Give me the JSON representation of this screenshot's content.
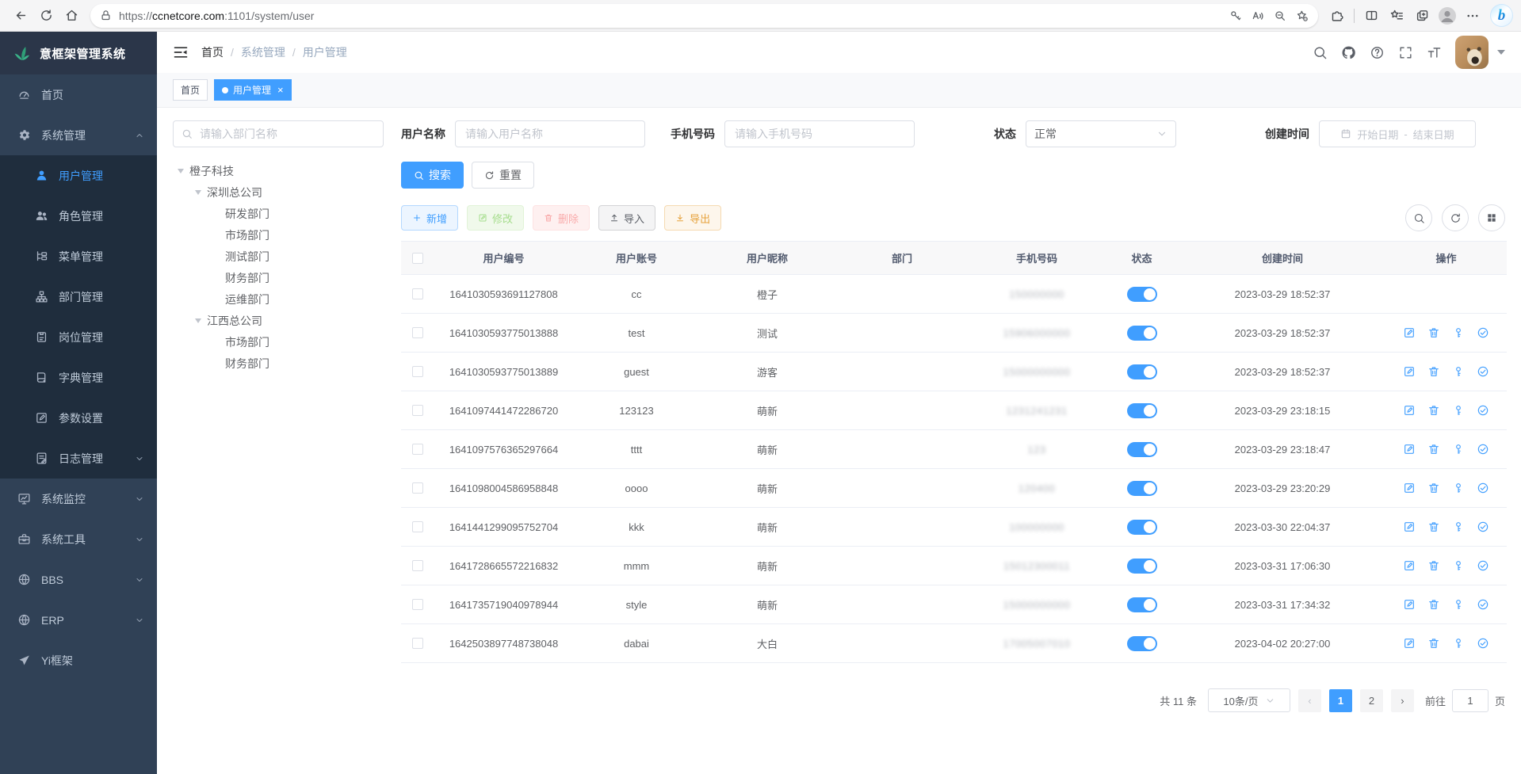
{
  "browser": {
    "url_scheme": "https://",
    "url_host": "ccnetcore.com",
    "url_path": ":1101/system/user"
  },
  "app_title": "意框架管理系统",
  "sidebar": {
    "items": [
      {
        "key": "home",
        "label": "首页",
        "icon": "dashboard-icon",
        "level": "top"
      },
      {
        "key": "system",
        "label": "系统管理",
        "icon": "gear-icon",
        "level": "top",
        "arrow": "up"
      },
      {
        "key": "user",
        "label": "用户管理",
        "icon": "user-icon",
        "level": "sub",
        "active": true
      },
      {
        "key": "role",
        "label": "角色管理",
        "icon": "users-icon",
        "level": "sub"
      },
      {
        "key": "menu",
        "label": "菜单管理",
        "icon": "menu-tree-icon",
        "level": "sub"
      },
      {
        "key": "dept",
        "label": "部门管理",
        "icon": "org-tree-icon",
        "level": "sub"
      },
      {
        "key": "post",
        "label": "岗位管理",
        "icon": "post-icon",
        "level": "sub"
      },
      {
        "key": "dict",
        "label": "字典管理",
        "icon": "dict-icon",
        "level": "sub"
      },
      {
        "key": "param",
        "label": "参数设置",
        "icon": "edit-square-icon",
        "level": "sub"
      },
      {
        "key": "log",
        "label": "日志管理",
        "icon": "log-icon",
        "level": "sub",
        "arrow": "down"
      },
      {
        "key": "monitor",
        "label": "系统监控",
        "icon": "monitor-icon",
        "level": "top",
        "arrow": "down"
      },
      {
        "key": "tool",
        "label": "系统工具",
        "icon": "toolbox-icon",
        "level": "top",
        "arrow": "down"
      },
      {
        "key": "bbs",
        "label": "BBS",
        "icon": "globe-icon",
        "level": "top",
        "arrow": "down"
      },
      {
        "key": "erp",
        "label": "ERP",
        "icon": "globe-icon",
        "level": "top",
        "arrow": "down"
      },
      {
        "key": "yi",
        "label": "Yi框架",
        "icon": "guide-icon",
        "level": "top"
      }
    ]
  },
  "breadcrumb": {
    "items": [
      "首页",
      "系统管理",
      "用户管理"
    ],
    "separator": "/"
  },
  "tags": [
    {
      "label": "首页",
      "active": false
    },
    {
      "label": "用户管理",
      "active": true,
      "closable": true
    }
  ],
  "tree": {
    "search_placeholder": "请输入部门名称",
    "nodes": [
      {
        "label": "橙子科技",
        "level": 0,
        "expanded": true
      },
      {
        "label": "深圳总公司",
        "level": 1,
        "expanded": true
      },
      {
        "label": "研发部门",
        "level": 2
      },
      {
        "label": "市场部门",
        "level": 2
      },
      {
        "label": "测试部门",
        "level": 2
      },
      {
        "label": "财务部门",
        "level": 2
      },
      {
        "label": "运维部门",
        "level": 2
      },
      {
        "label": "江西总公司",
        "level": 1,
        "expanded": true
      },
      {
        "label": "市场部门",
        "level": 2
      },
      {
        "label": "财务部门",
        "level": 2
      }
    ]
  },
  "filters": {
    "username_label": "用户名称",
    "username_placeholder": "请输入用户名称",
    "phone_label": "手机号码",
    "phone_placeholder": "请输入手机号码",
    "status_label": "状态",
    "status_value": "正常",
    "created_label": "创建时间",
    "date_start": "开始日期",
    "date_sep": "-",
    "date_end": "结束日期",
    "search_label": "搜索",
    "reset_label": "重置"
  },
  "toolbar": {
    "add": "新增",
    "edit": "修改",
    "delete": "删除",
    "import": "导入",
    "export": "导出"
  },
  "table": {
    "columns": [
      "用户编号",
      "用户账号",
      "用户昵称",
      "部门",
      "手机号码",
      "状态",
      "创建时间",
      "操作"
    ],
    "rows": [
      {
        "id": "1641030593691127808",
        "account": "cc",
        "nickname": "橙子",
        "dept": "",
        "phone": "150000000",
        "status": true,
        "created": "2023-03-29 18:52:37",
        "ops": false
      },
      {
        "id": "1641030593775013888",
        "account": "test",
        "nickname": "测试",
        "dept": "",
        "phone": "15906000000",
        "status": true,
        "created": "2023-03-29 18:52:37",
        "ops": true
      },
      {
        "id": "1641030593775013889",
        "account": "guest",
        "nickname": "游客",
        "dept": "",
        "phone": "15000000000",
        "status": true,
        "created": "2023-03-29 18:52:37",
        "ops": true
      },
      {
        "id": "1641097441472286720",
        "account": "123123",
        "nickname": "萌新",
        "dept": "",
        "phone": "1231241231",
        "status": true,
        "created": "2023-03-29 23:18:15",
        "ops": true
      },
      {
        "id": "1641097576365297664",
        "account": "tttt",
        "nickname": "萌新",
        "dept": "",
        "phone": "123",
        "status": true,
        "created": "2023-03-29 23:18:47",
        "ops": true
      },
      {
        "id": "1641098004586958848",
        "account": "oooo",
        "nickname": "萌新",
        "dept": "",
        "phone": "120400",
        "status": true,
        "created": "2023-03-29 23:20:29",
        "ops": true
      },
      {
        "id": "1641441299095752704",
        "account": "kkk",
        "nickname": "萌新",
        "dept": "",
        "phone": "100000000",
        "status": true,
        "created": "2023-03-30 22:04:37",
        "ops": true
      },
      {
        "id": "1641728665572216832",
        "account": "mmm",
        "nickname": "萌新",
        "dept": "",
        "phone": "15012300011",
        "status": true,
        "created": "2023-03-31 17:06:30",
        "ops": true
      },
      {
        "id": "1641735719040978944",
        "account": "style",
        "nickname": "萌新",
        "dept": "",
        "phone": "15000000000",
        "status": true,
        "created": "2023-03-31 17:34:32",
        "ops": true
      },
      {
        "id": "1642503897748738048",
        "account": "dabai",
        "nickname": "大白",
        "dept": "",
        "phone": "17005007010",
        "status": true,
        "created": "2023-04-02 20:27:00",
        "ops": true
      }
    ]
  },
  "pagination": {
    "total_text": "共 11 条",
    "page_size": "10条/页",
    "pages": [
      "1",
      "2"
    ],
    "active_page": "1",
    "goto_label": "前往",
    "goto_value": "1",
    "goto_suffix": "页"
  },
  "colors": {
    "primary": "#409eff",
    "sidebar": "#304156",
    "submenu": "#1f2d3d"
  }
}
